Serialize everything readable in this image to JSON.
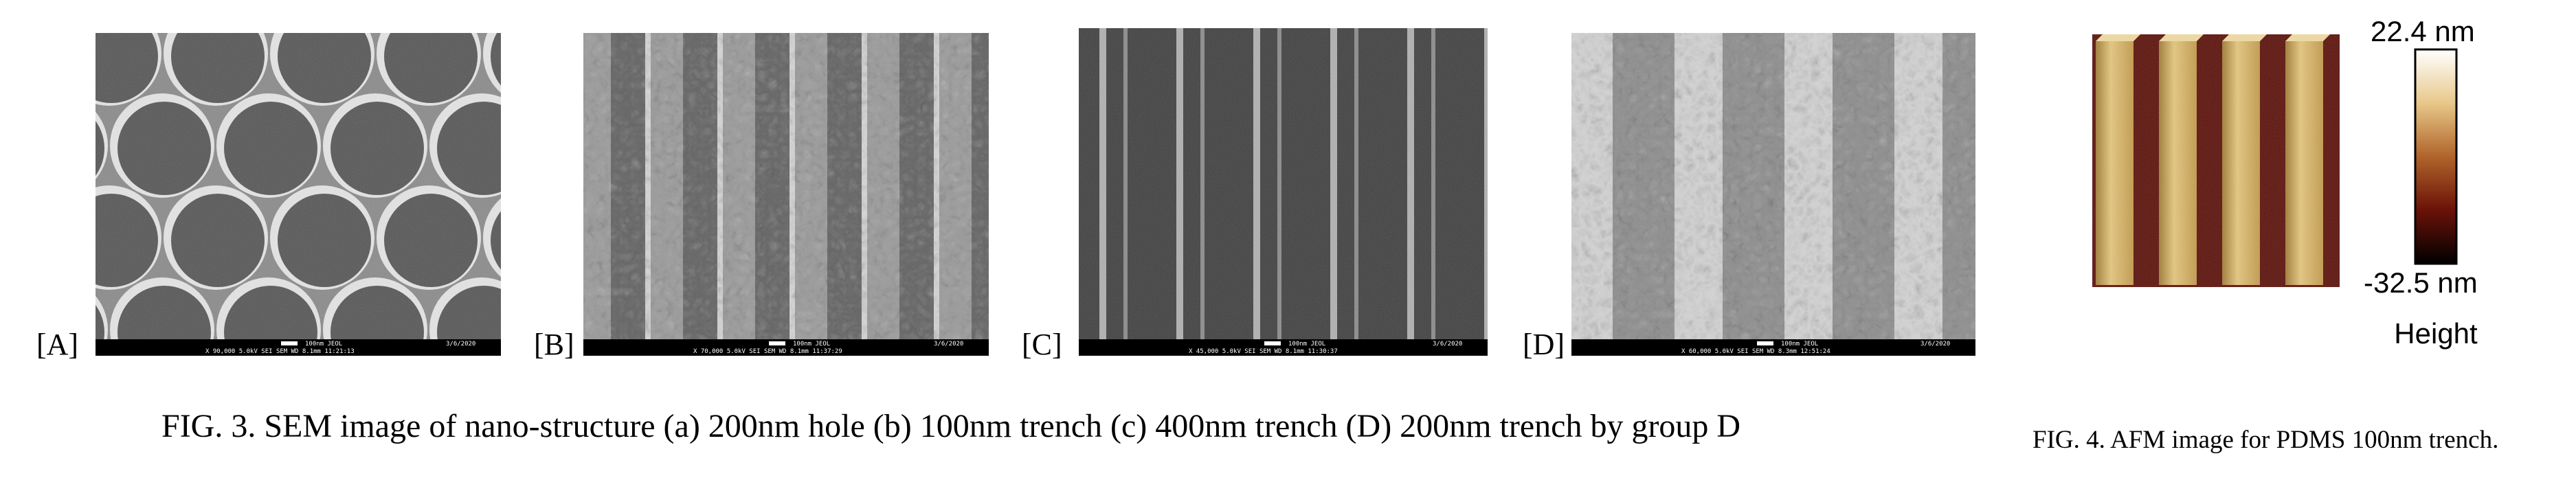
{
  "figure3": {
    "panels": [
      {
        "label": "[A]",
        "scale": "100nm JEOL",
        "date": "3/6/2020",
        "info": "X 90,000 5.0kV SEI SEM WD 8.1mm 11:21:13"
      },
      {
        "label": "[B]",
        "scale": "100nm JEOL",
        "date": "3/6/2020",
        "info": "X 70,000 5.0kV SEI SEM WD 8.1mm 11:37:29"
      },
      {
        "label": "[C]",
        "scale": "100nm JEOL",
        "date": "3/6/2020",
        "info": "X 45,000 5.0kV SEI SEM WD 8.1mm 11:30:37"
      },
      {
        "label": "[D]",
        "scale": "100nm JEOL",
        "date": "3/6/2020",
        "info": "X 60,000 5.0kV SEI SEM WD 8.3mm 12:51:24"
      }
    ],
    "caption": "FIG. 3. SEM image of nano-structure (a) 200nm hole (b) 100nm trench (c) 400nm trench (D) 200nm trench by group D"
  },
  "figure4": {
    "colorbar": {
      "max": "22.4 nm",
      "min": "-32.5 nm",
      "label": "Height"
    },
    "caption": "FIG. 4. AFM image for PDMS 100nm trench."
  }
}
